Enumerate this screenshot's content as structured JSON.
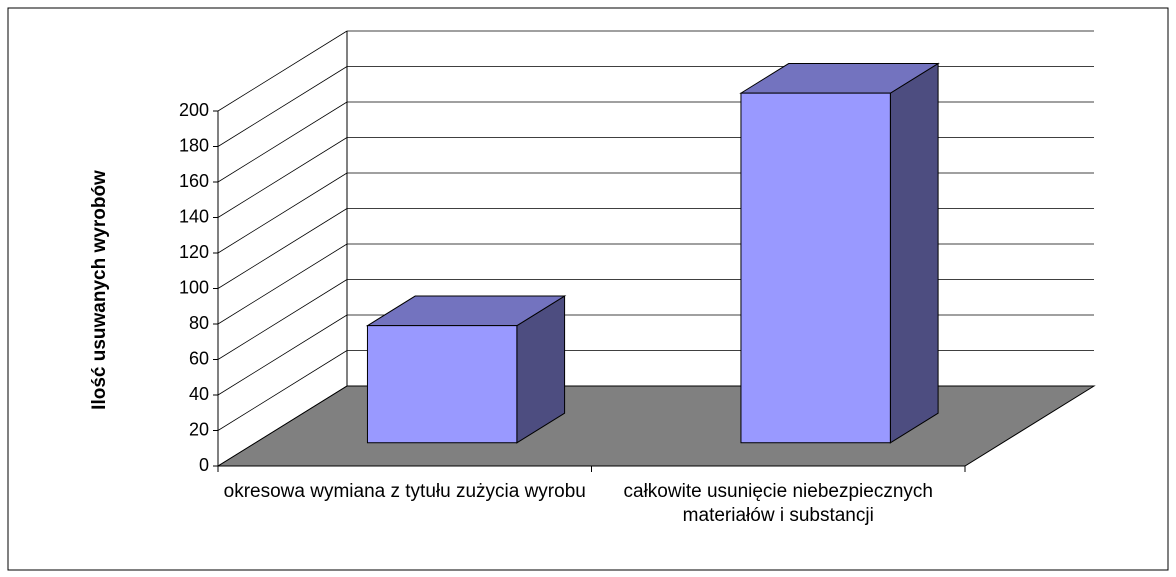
{
  "chart_data": {
    "type": "bar3d",
    "ylabel": "Ilość usuwanych wyrobów",
    "categories": [
      "okresowa wymiana z tytułu zużycia wyrobu",
      "całkowite usunięcie niebezpiecznych materiałów i substancji"
    ],
    "values": [
      66,
      197
    ],
    "color": "#9999ff",
    "floor_color": "#808080",
    "ylim": [
      0,
      200
    ],
    "yticks": [
      0,
      20,
      40,
      60,
      80,
      100,
      120,
      140,
      160,
      180,
      200
    ],
    "grid": true
  }
}
